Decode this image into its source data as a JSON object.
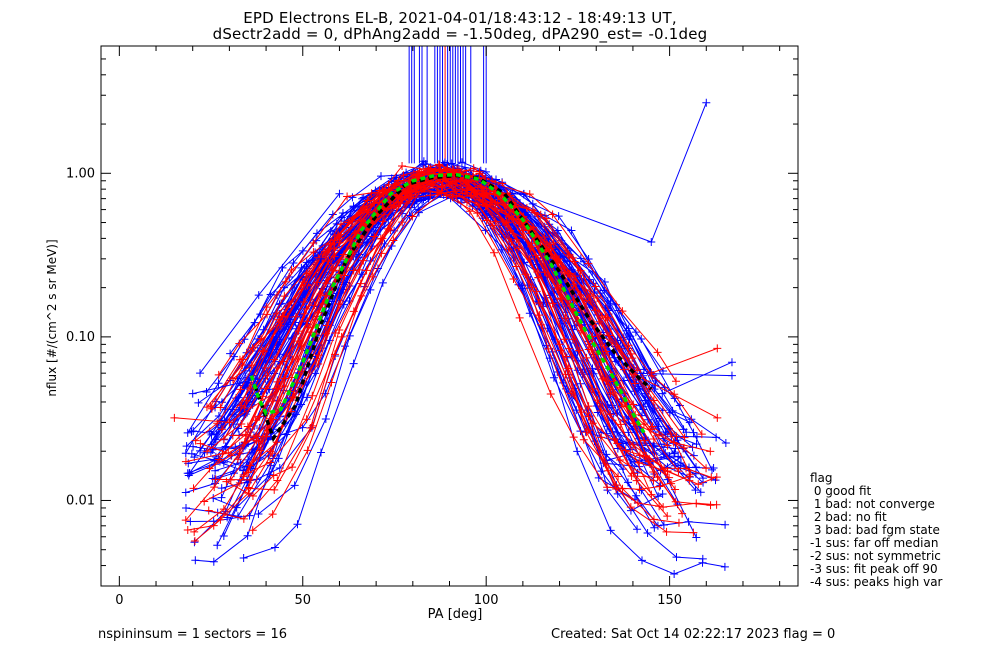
{
  "title_line1": "EPD Electrons EL-B, 2021-04-01/18:43:12 - 18:49:13 UT,",
  "title_line2": "dSectr2add = 0, dPhAng2add = -1.50deg, dPA290_est=  -0.1deg",
  "chart_data": {
    "type": "line",
    "xlabel": "PA [deg]",
    "ylabel": "nflux [#/(cm^2 s sr MeV)]",
    "xlim": [
      -5,
      185
    ],
    "ylim": [
      0.003,
      6.0
    ],
    "yscale": "log",
    "xticks": [
      0,
      50,
      100,
      150
    ],
    "xtick_labels": [
      "0",
      "50",
      "100",
      "150"
    ],
    "yticks": [
      0.01,
      0.1,
      1.0
    ],
    "ytick_labels": [
      "0.01",
      "0.10",
      "1.00"
    ],
    "grid": false,
    "series_colors": {
      "blue": "#0000ff",
      "red": "#ff0000",
      "green_fit": "#00dd00",
      "black_median": "#000000"
    },
    "median_curve": {
      "x": [
        37,
        42,
        48,
        55,
        62,
        70,
        78,
        85,
        92,
        98,
        105,
        112,
        120,
        128,
        135,
        142,
        145
      ],
      "y": [
        0.05,
        0.024,
        0.038,
        0.12,
        0.3,
        0.55,
        0.85,
        0.94,
        0.97,
        0.93,
        0.75,
        0.45,
        0.25,
        0.13,
        0.08,
        0.055,
        0.048
      ]
    },
    "fit_curve": {
      "x": [
        36,
        38,
        40,
        44,
        50,
        58,
        66,
        74,
        80,
        86,
        92,
        98,
        104,
        110,
        118,
        126,
        134,
        140,
        143
      ],
      "y": [
        0.058,
        0.042,
        0.034,
        0.036,
        0.07,
        0.2,
        0.45,
        0.75,
        0.9,
        0.97,
        0.98,
        0.92,
        0.74,
        0.52,
        0.27,
        0.12,
        0.06,
        0.034,
        0.026
      ]
    },
    "curve_families": [
      {
        "color": "blue",
        "count": 70,
        "sides": "both"
      },
      {
        "color": "red",
        "count": 35,
        "sides": "both"
      }
    ],
    "outlier_lines": [
      {
        "color": "blue",
        "x": [
          22,
          38,
          60
        ],
        "y": [
          0.06,
          0.18,
          0.75
        ]
      },
      {
        "color": "blue",
        "x": [
          100,
          145,
          160
        ],
        "y": [
          0.9,
          0.38,
          2.7
        ]
      },
      {
        "color": "blue",
        "x": [
          20,
          37,
          55
        ],
        "y": [
          0.045,
          0.055,
          0.3
        ]
      },
      {
        "color": "red",
        "x": [
          15,
          30,
          45
        ],
        "y": [
          0.032,
          0.03,
          0.05
        ]
      },
      {
        "color": "blue",
        "x": [
          140,
          167
        ],
        "y": [
          0.06,
          0.058
        ]
      },
      {
        "color": "red",
        "x": [
          145,
          163
        ],
        "y": [
          0.06,
          0.085
        ]
      },
      {
        "color": "blue",
        "x": [
          148,
          167
        ],
        "y": [
          0.045,
          0.07
        ]
      },
      {
        "color": "red",
        "x": [
          140,
          163
        ],
        "y": [
          0.06,
          0.032
        ]
      }
    ],
    "saturation_lines": {
      "x_range": [
        79,
        101
      ],
      "dense_range": [
        86,
        95
      ],
      "y_top": 6.0,
      "y_bottom": 1.15
    }
  },
  "legend": {
    "title": "flag",
    "items": [
      " 0 good fit",
      " 1 bad: not converge",
      " 2 bad: no fit",
      " 3 bad: bad fgm state",
      "-1 sus: far off median",
      "-2 sus: not symmetric",
      "-3 sus: fit peak off 90",
      "-4 sus: peaks high var"
    ]
  },
  "footer": {
    "left": "nspininsum =  1  sectors = 16",
    "right": "Created: Sat Oct 14 02:22:17 2023   flag = 0"
  }
}
